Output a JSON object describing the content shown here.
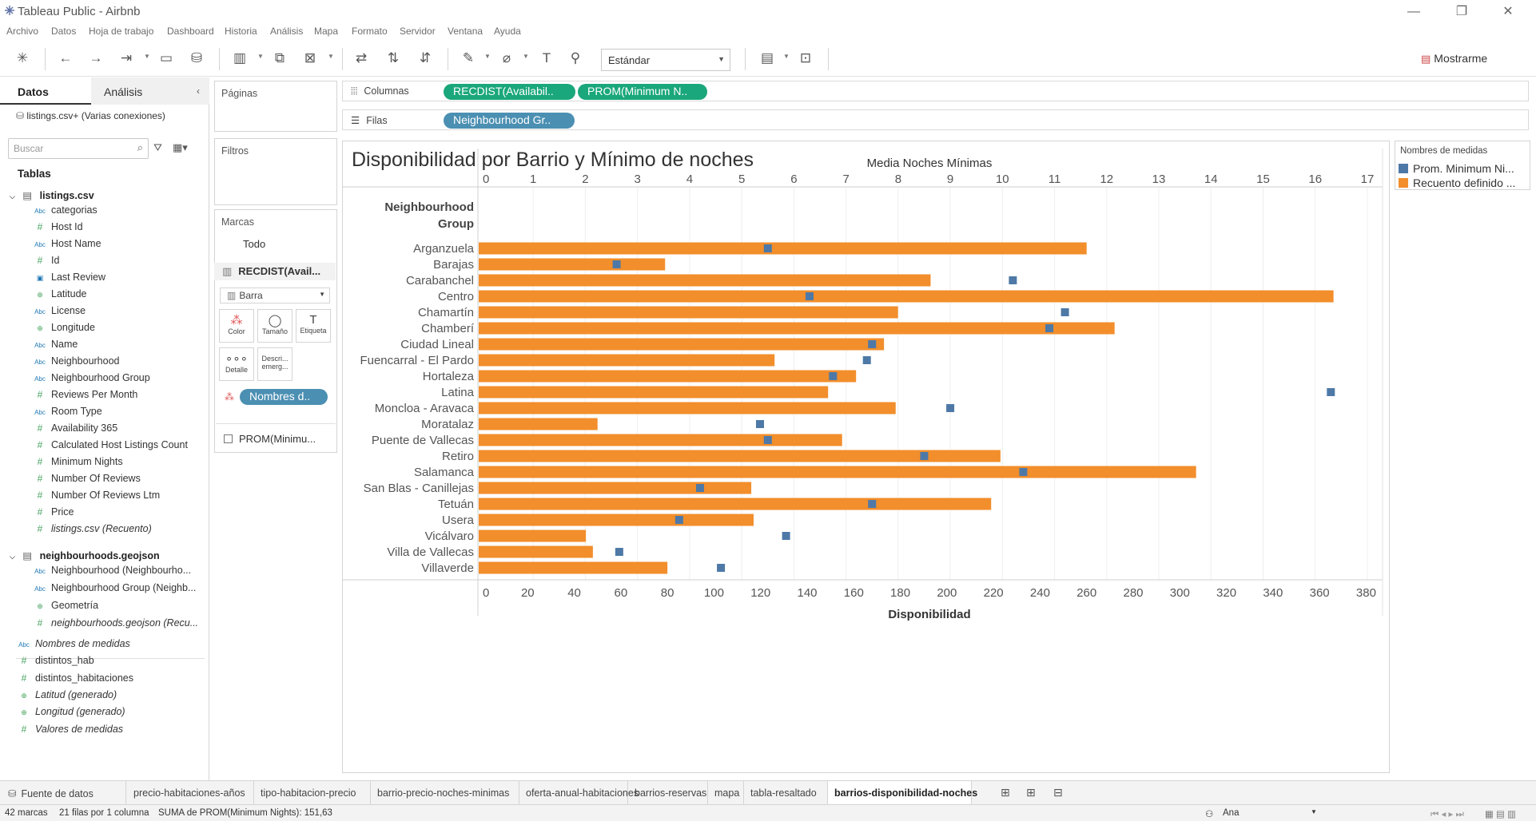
{
  "window": {
    "title": "Tableau Public - Airbnb"
  },
  "menu": [
    "Archivo",
    "Datos",
    "Hoja de trabajo",
    "Dashboard",
    "Historia",
    "Análisis",
    "Mapa",
    "Formato",
    "Servidor",
    "Ventana",
    "Ayuda"
  ],
  "toolbar": {
    "fit_value": "Estándar",
    "show_me": "Mostrarme"
  },
  "data_pane": {
    "tab_datos": "Datos",
    "tab_analisis": "Análisis",
    "connection": "listings.csv+ (Varias conexiones)",
    "search_placeholder": "Buscar",
    "tables_header": "Tablas",
    "listings": {
      "name": "listings.csv",
      "fields": [
        {
          "icon": "Abc",
          "name": "categorias"
        },
        {
          "icon": "#",
          "name": "Host Id"
        },
        {
          "icon": "Abc",
          "name": "Host Name"
        },
        {
          "icon": "#",
          "name": "Id"
        },
        {
          "icon": "date",
          "name": "Last Review"
        },
        {
          "icon": "geo",
          "name": "Latitude"
        },
        {
          "icon": "Abc",
          "name": "License"
        },
        {
          "icon": "geo",
          "name": "Longitude"
        },
        {
          "icon": "Abc",
          "name": "Name"
        },
        {
          "icon": "Abc",
          "name": "Neighbourhood"
        },
        {
          "icon": "Abc",
          "name": "Neighbourhood Group"
        },
        {
          "icon": "#",
          "name": "Reviews Per Month"
        },
        {
          "icon": "Abc",
          "name": "Room Type"
        },
        {
          "icon": "#",
          "name": "Availability 365"
        },
        {
          "icon": "#",
          "name": "Calculated Host Listings Count"
        },
        {
          "icon": "#",
          "name": "Minimum Nights"
        },
        {
          "icon": "#",
          "name": "Number Of Reviews"
        },
        {
          "icon": "#",
          "name": "Number Of Reviews Ltm"
        },
        {
          "icon": "#",
          "name": "Price"
        },
        {
          "icon": "#",
          "name": "listings.csv (Recuento)"
        }
      ]
    },
    "geojson": {
      "name": "neighbourhoods.geojson",
      "fields": [
        {
          "icon": "Abc",
          "name": "Neighbourhood (Neighbourho..."
        },
        {
          "icon": "Abc",
          "name": "Neighbourhood Group (Neighb..."
        },
        {
          "icon": "geo",
          "name": "Geometría"
        },
        {
          "icon": "#",
          "name": "neighbourhoods.geojson (Recu..."
        }
      ]
    },
    "extra_fields": [
      {
        "icon": "Abc",
        "name": "Nombres de medidas"
      },
      {
        "icon": "#",
        "name": "distintos_hab"
      },
      {
        "icon": "#",
        "name": "distintos_habitaciones"
      },
      {
        "icon": "geo",
        "name": "Latitud (generado)"
      },
      {
        "icon": "geo",
        "name": "Longitud (generado)"
      },
      {
        "icon": "#",
        "name": "Valores de medidas"
      }
    ]
  },
  "cards": {
    "pages": "Páginas",
    "filters": "Filtros",
    "marks": "Marcas",
    "marks_all": "Todo",
    "marks_recdist": "RECDIST(Avail...",
    "mark_type": "Barra",
    "btn_color": "Color",
    "btn_size": "Tamaño",
    "btn_label": "Etiqueta",
    "btn_detail": "Detalle",
    "btn_tooltip": "Descri... emerg...",
    "pill_names": "Nombres d..",
    "marks_prom": "PROM(Minimu..."
  },
  "shelves": {
    "columns_label": "Columnas",
    "rows_label": "Filas",
    "col_pill_1": "RECDIST(Availabil..",
    "col_pill_2": "PROM(Minimum N..",
    "row_pill_1": "Neighbourhood Gr.."
  },
  "legend": {
    "title": "Nombres de medidas",
    "items": [
      {
        "name": "Prom. Minimum Ni...",
        "color": "#4e79a7"
      },
      {
        "name": "Recuento definido ...",
        "color": "#f28e2b"
      }
    ]
  },
  "chart_data": {
    "type": "bar",
    "title": "Disponibilidad por Barrio y Mínimo de noches",
    "row_header": "Neighbourhood Group",
    "top_axis_label": "Media Noches Mínimas",
    "bottom_axis_label": "Disponibilidad",
    "top_ticks": [
      0,
      1,
      2,
      3,
      4,
      5,
      6,
      7,
      8,
      9,
      10,
      11,
      12,
      13,
      14,
      15,
      16,
      17
    ],
    "bottom_ticks": [
      0,
      20,
      40,
      60,
      80,
      100,
      120,
      140,
      160,
      180,
      200,
      220,
      240,
      260,
      280,
      300,
      320,
      340,
      360,
      380
    ],
    "categories": [
      "Arganzuela",
      "Barajas",
      "Carabanchel",
      "Centro",
      "Chamartín",
      "Chamberí",
      "Ciudad Lineal",
      "Fuencarral - El Pardo",
      "Hortaleza",
      "Latina",
      "Moncloa - Aravaca",
      "Moratalaz",
      "Puente de Vallecas",
      "Retiro",
      "Salamanca",
      "San Blas - Canillejas",
      "Tetuán",
      "Usera",
      "Vicálvaro",
      "Villa de Vallecas",
      "Villaverde"
    ],
    "series": [
      {
        "name": "Recuento definido ...",
        "axis": "bottom",
        "color": "#f28e2b",
        "values": [
          260,
          79,
          193,
          366,
          179,
          272,
          173,
          126,
          161,
          149,
          178,
          50,
          155,
          223,
          307,
          116,
          219,
          117,
          45,
          48,
          80
        ]
      },
      {
        "name": "Prom. Minimum Ni...",
        "axis": "top",
        "color": "#4e79a7",
        "values": [
          5.5,
          2.6,
          10.2,
          6.3,
          11.2,
          10.9,
          7.5,
          7.4,
          6.75,
          16.3,
          9.0,
          5.35,
          5.5,
          8.5,
          10.4,
          4.2,
          7.5,
          3.8,
          5.85,
          2.65,
          4.6
        ]
      }
    ],
    "xlim_bottom": [
      0,
      385
    ],
    "xlim_top": [
      0,
      17.2
    ]
  },
  "sheets": {
    "source": "Fuente de datos",
    "tabs": [
      "precio-habitaciones-años",
      "tipo-habitacion-precio",
      "barrio-precio-noches-minimas",
      "oferta-anual-habitaciones",
      "barrios-reservas",
      "mapa",
      "tabla-resaltado",
      "barrios-disponibilidad-noches"
    ],
    "active": "barrios-disponibilidad-noches"
  },
  "status": {
    "marks": "42 marcas",
    "rows": "21 filas por 1 columna",
    "sum": "SUMA de PROM(Minimum Nights): 151,63",
    "user": "Ana"
  }
}
